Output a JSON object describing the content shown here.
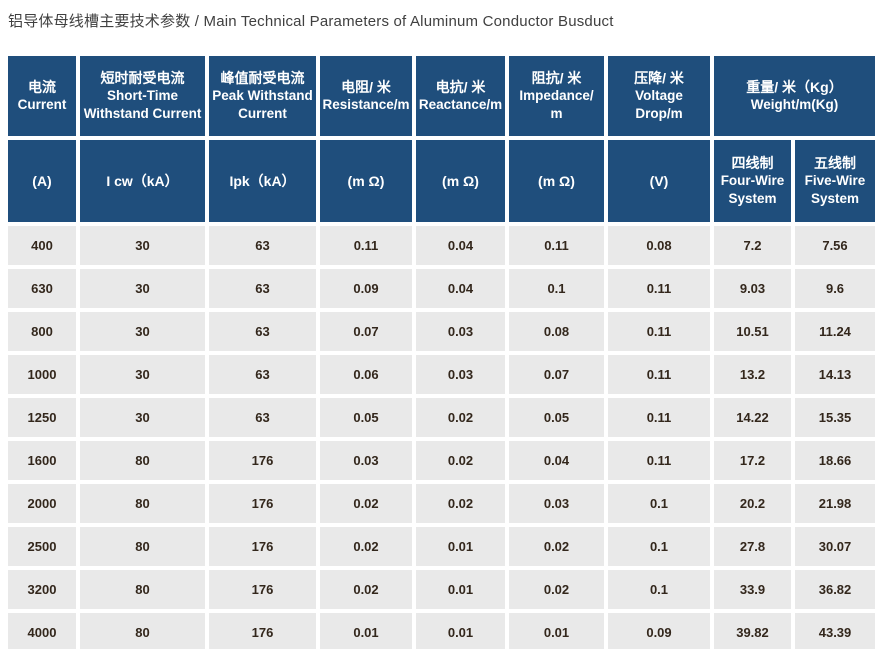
{
  "title": "铝导体母线槽主要技术参数 / Main Technical Parameters of Aluminum Conductor Busduct",
  "colors": {
    "header_background": "#1f4e7c",
    "header_text": "#ffffff",
    "row_background": "#e9e9e9",
    "data_text": "#33271c",
    "title_text": "#404040"
  },
  "table": {
    "header_row1": [
      {
        "zh": "电流",
        "en": "Current"
      },
      {
        "zh": "短时耐受电流",
        "en": "Short-Time\nWithstand Current"
      },
      {
        "zh": "峰值耐受电流",
        "en": "Peak Withstand\nCurrent"
      },
      {
        "zh": "电阻/ 米",
        "en": "Resistance/m"
      },
      {
        "zh": "电抗/ 米",
        "en": "Reactance/m"
      },
      {
        "zh": "阻抗/ 米",
        "en": "Impedance/\nm"
      },
      {
        "zh": "压降/ 米",
        "en": "Voltage\nDrop/m"
      },
      {
        "zh": "重量/ 米（Kg）",
        "en": "Weight/m(Kg)"
      }
    ],
    "header_row2": [
      {
        "label": "(A)"
      },
      {
        "label": "I cw（kA）"
      },
      {
        "label": "Ipk（kA）"
      },
      {
        "label": "(m Ω)"
      },
      {
        "label": "(m Ω)"
      },
      {
        "label": "(m Ω)"
      },
      {
        "label": "(V)"
      },
      {
        "zh": "四线制",
        "en": "Four-Wire\nSystem"
      },
      {
        "zh": "五线制",
        "en": "Five-Wire\nSystem"
      }
    ],
    "rows": [
      [
        "400",
        "30",
        "63",
        "0.11",
        "0.04",
        "0.11",
        "0.08",
        "7.2",
        "7.56"
      ],
      [
        "630",
        "30",
        "63",
        "0.09",
        "0.04",
        "0.1",
        "0.11",
        "9.03",
        "9.6"
      ],
      [
        "800",
        "30",
        "63",
        "0.07",
        "0.03",
        "0.08",
        "0.11",
        "10.51",
        "11.24"
      ],
      [
        "1000",
        "30",
        "63",
        "0.06",
        "0.03",
        "0.07",
        "0.11",
        "13.2",
        "14.13"
      ],
      [
        "1250",
        "30",
        "63",
        "0.05",
        "0.02",
        "0.05",
        "0.11",
        "14.22",
        "15.35"
      ],
      [
        "1600",
        "80",
        "176",
        "0.03",
        "0.02",
        "0.04",
        "0.11",
        "17.2",
        "18.66"
      ],
      [
        "2000",
        "80",
        "176",
        "0.02",
        "0.02",
        "0.03",
        "0.1",
        "20.2",
        "21.98"
      ],
      [
        "2500",
        "80",
        "176",
        "0.02",
        "0.01",
        "0.02",
        "0.1",
        "27.8",
        "30.07"
      ],
      [
        "3200",
        "80",
        "176",
        "0.02",
        "0.01",
        "0.02",
        "0.1",
        "33.9",
        "36.82"
      ],
      [
        "4000",
        "80",
        "176",
        "0.01",
        "0.01",
        "0.01",
        "0.09",
        "39.82",
        "43.39"
      ]
    ]
  }
}
